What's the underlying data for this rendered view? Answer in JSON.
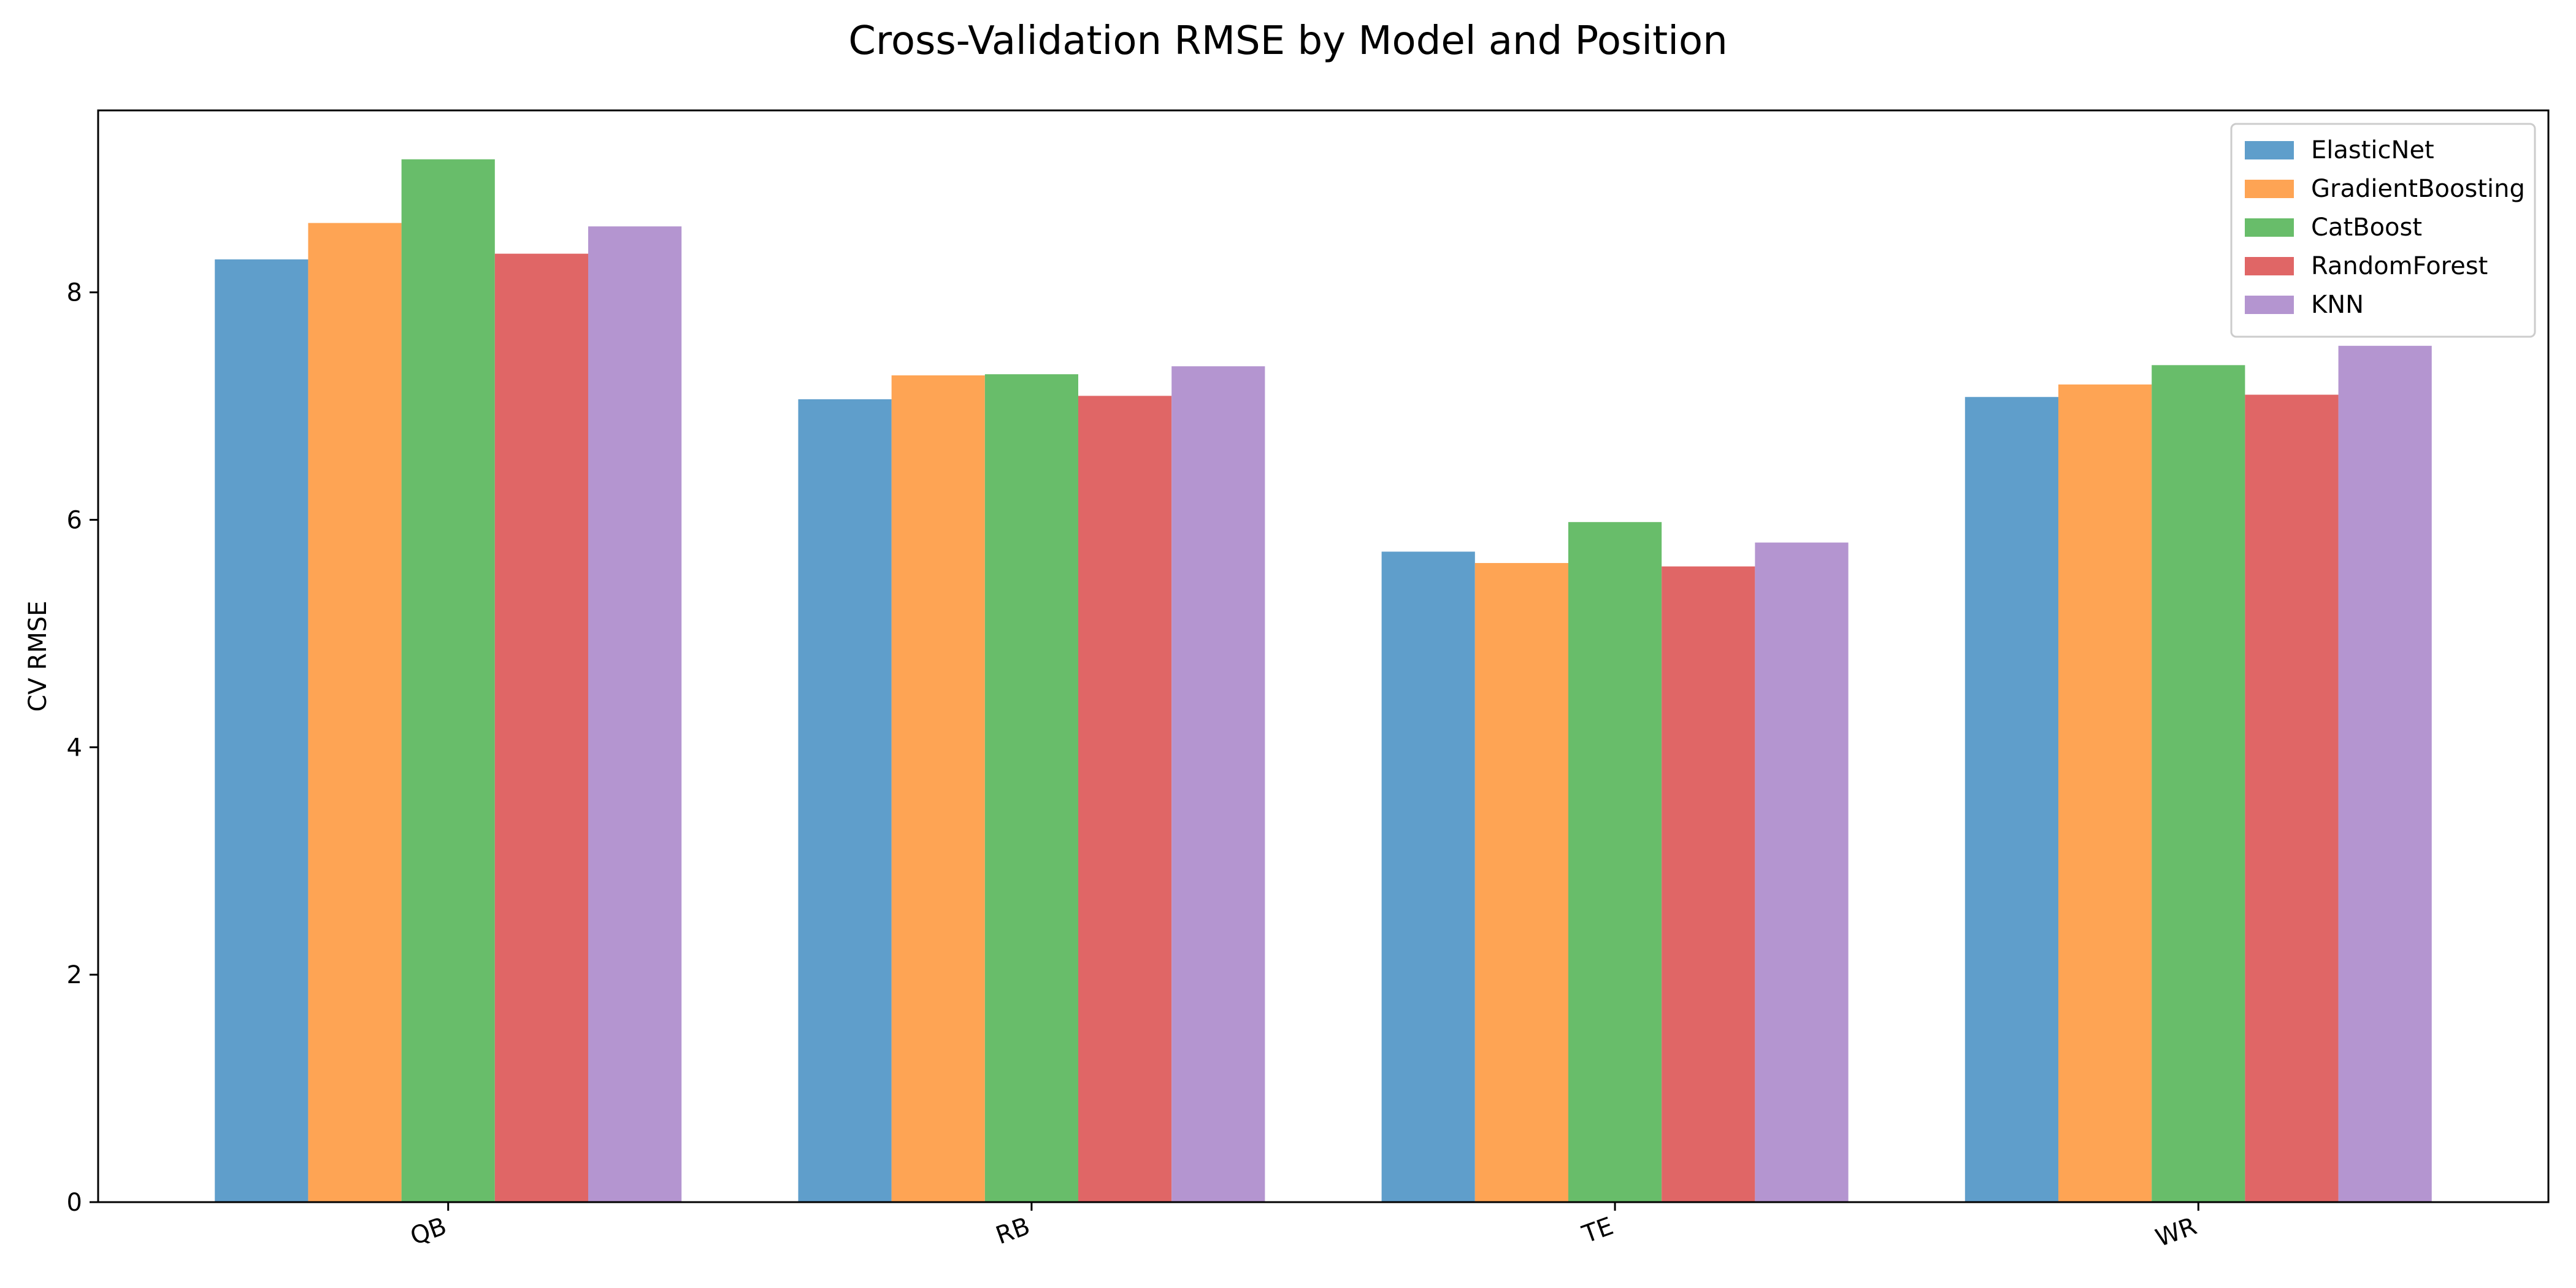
{
  "chart_data": {
    "type": "bar",
    "title": "Cross-Validation RMSE by Model and Position",
    "xlabel": "",
    "ylabel": "CV RMSE",
    "categories": [
      "QB",
      "RB",
      "TE",
      "WR"
    ],
    "ylim": [
      0,
      9.6
    ],
    "yticks": [
      0,
      2,
      4,
      6,
      8
    ],
    "grid": false,
    "legend_position": "top-right",
    "series": [
      {
        "name": "ElasticNet",
        "color": "#5f9ecb",
        "values": [
          8.29,
          7.06,
          5.72,
          7.08
        ]
      },
      {
        "name": "GradientBoosting",
        "color": "#fea454",
        "values": [
          8.61,
          7.27,
          5.62,
          7.19
        ]
      },
      {
        "name": "CatBoost",
        "color": "#68bd6a",
        "values": [
          9.17,
          7.28,
          5.98,
          7.36
        ]
      },
      {
        "name": "RandomForest",
        "color": "#e06666",
        "values": [
          8.34,
          7.09,
          5.59,
          7.1
        ]
      },
      {
        "name": "KNN",
        "color": "#b495d0",
        "values": [
          8.58,
          7.35,
          5.8,
          7.53
        ]
      }
    ]
  }
}
